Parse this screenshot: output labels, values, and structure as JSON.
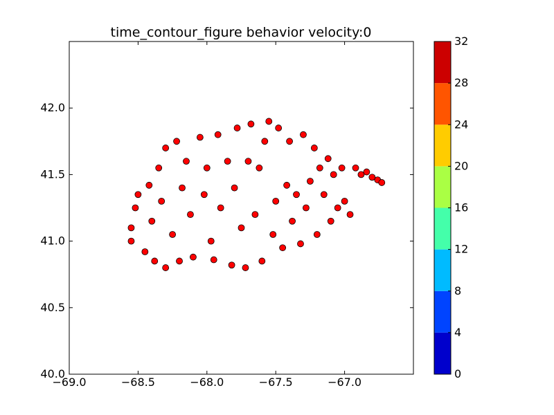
{
  "chart_data": {
    "type": "scatter",
    "title": "time_contour_figure behavior velocity:0",
    "xlabel": "",
    "ylabel": "",
    "xlim": [
      -69.0,
      -66.5
    ],
    "ylim": [
      40.0,
      42.5
    ],
    "x_ticks": [
      -69.0,
      -68.5,
      -68.0,
      -67.5,
      -67.0
    ],
    "x_tick_labels": [
      "−69.0",
      "−68.5",
      "−68.0",
      "−67.5",
      "−67.0"
    ],
    "y_ticks": [
      40.0,
      40.5,
      41.0,
      41.5,
      42.0
    ],
    "y_tick_labels": [
      "40.0",
      "40.5",
      "41.0",
      "41.5",
      "42.0"
    ],
    "grid": false,
    "marker_color": "#ff0000",
    "marker_edge_color": "#000000",
    "series": [
      {
        "values_estimated_from_image": true,
        "points": [
          [
            -68.55,
            41.1
          ],
          [
            -68.55,
            41.0
          ],
          [
            -68.52,
            41.25
          ],
          [
            -68.5,
            41.35
          ],
          [
            -68.45,
            40.92
          ],
          [
            -68.42,
            41.42
          ],
          [
            -68.4,
            41.15
          ],
          [
            -68.38,
            40.85
          ],
          [
            -68.35,
            41.55
          ],
          [
            -68.33,
            41.3
          ],
          [
            -68.3,
            40.8
          ],
          [
            -68.3,
            41.7
          ],
          [
            -68.25,
            41.05
          ],
          [
            -68.22,
            41.75
          ],
          [
            -68.2,
            40.85
          ],
          [
            -68.18,
            41.4
          ],
          [
            -68.15,
            41.6
          ],
          [
            -68.12,
            41.2
          ],
          [
            -68.1,
            40.88
          ],
          [
            -68.05,
            41.78
          ],
          [
            -68.02,
            41.35
          ],
          [
            -68.0,
            41.55
          ],
          [
            -67.97,
            41.0
          ],
          [
            -67.95,
            40.86
          ],
          [
            -67.92,
            41.8
          ],
          [
            -67.9,
            41.25
          ],
          [
            -67.85,
            41.6
          ],
          [
            -67.82,
            40.82
          ],
          [
            -67.8,
            41.4
          ],
          [
            -67.78,
            41.85
          ],
          [
            -67.75,
            41.1
          ],
          [
            -67.72,
            40.8
          ],
          [
            -67.7,
            41.6
          ],
          [
            -67.68,
            41.88
          ],
          [
            -67.65,
            41.2
          ],
          [
            -67.62,
            41.55
          ],
          [
            -67.6,
            40.85
          ],
          [
            -67.58,
            41.75
          ],
          [
            -67.55,
            41.9
          ],
          [
            -67.52,
            41.05
          ],
          [
            -67.5,
            41.3
          ],
          [
            -67.48,
            41.85
          ],
          [
            -67.45,
            40.95
          ],
          [
            -67.42,
            41.42
          ],
          [
            -67.4,
            41.75
          ],
          [
            -67.38,
            41.15
          ],
          [
            -67.35,
            41.35
          ],
          [
            -67.32,
            40.98
          ],
          [
            -67.3,
            41.8
          ],
          [
            -67.28,
            41.25
          ],
          [
            -67.25,
            41.45
          ],
          [
            -67.22,
            41.7
          ],
          [
            -67.2,
            41.05
          ],
          [
            -67.18,
            41.55
          ],
          [
            -67.15,
            41.35
          ],
          [
            -67.12,
            41.62
          ],
          [
            -67.1,
            41.15
          ],
          [
            -67.08,
            41.5
          ],
          [
            -67.05,
            41.25
          ],
          [
            -67.02,
            41.55
          ],
          [
            -67.0,
            41.3
          ],
          [
            -66.96,
            41.2
          ],
          [
            -66.92,
            41.55
          ],
          [
            -66.88,
            41.5
          ],
          [
            -66.84,
            41.52
          ],
          [
            -66.8,
            41.48
          ],
          [
            -66.76,
            41.46
          ],
          [
            -66.73,
            41.44
          ]
        ]
      }
    ],
    "colorbar": {
      "ticks": [
        0,
        4,
        8,
        12,
        16,
        20,
        24,
        28,
        32
      ],
      "tick_labels": [
        "0",
        "4",
        "8",
        "12",
        "16",
        "20",
        "24",
        "28",
        "32"
      ],
      "colors": [
        "#0000cc",
        "#0044ff",
        "#00bbff",
        "#44ffaa",
        "#aaff44",
        "#ffcc00",
        "#ff5500",
        "#cc0000"
      ]
    }
  }
}
